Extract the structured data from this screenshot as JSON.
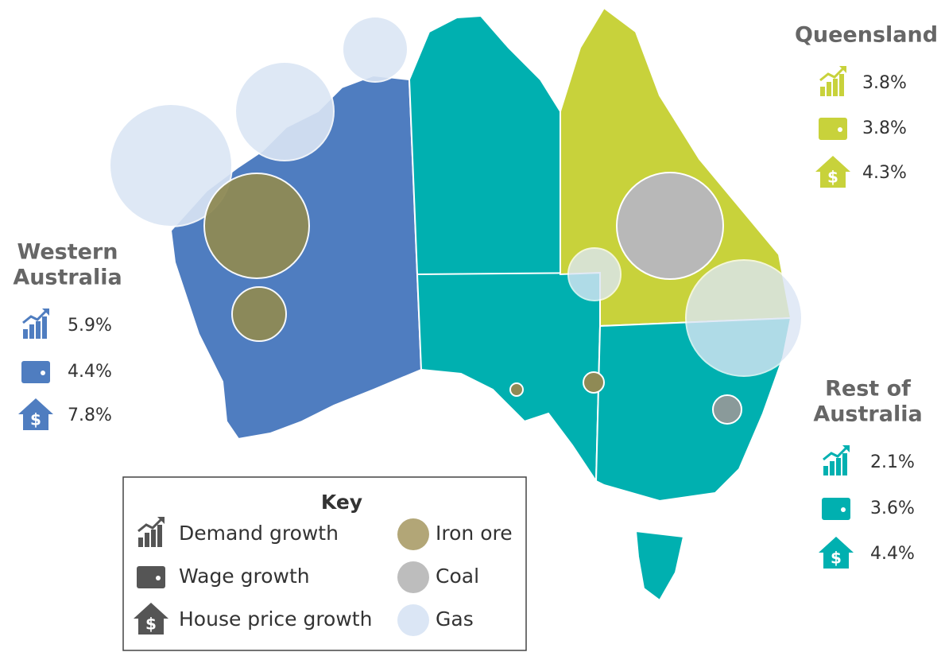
{
  "regions": [
    {
      "name": "Queensland",
      "demand_growth": "3.8%",
      "wage_growth": "3.8%",
      "house_price_growth": "4.3%"
    },
    {
      "name": [
        "Western",
        "Australia"
      ],
      "demand_growth": "5.9%",
      "wage_growth": "4.4%",
      "house_price_growth": "7.8%"
    },
    {
      "name": [
        "Rest of",
        "Australia"
      ],
      "demand_growth": "2.1%",
      "wage_growth": "3.6%",
      "house_price_growth": "4.4%"
    }
  ],
  "key": {
    "title": "Key",
    "metrics": [
      "Demand growth",
      "Wage growth",
      "House price growth"
    ],
    "resources": [
      "Iron ore",
      "Coal",
      "Gas"
    ]
  }
}
